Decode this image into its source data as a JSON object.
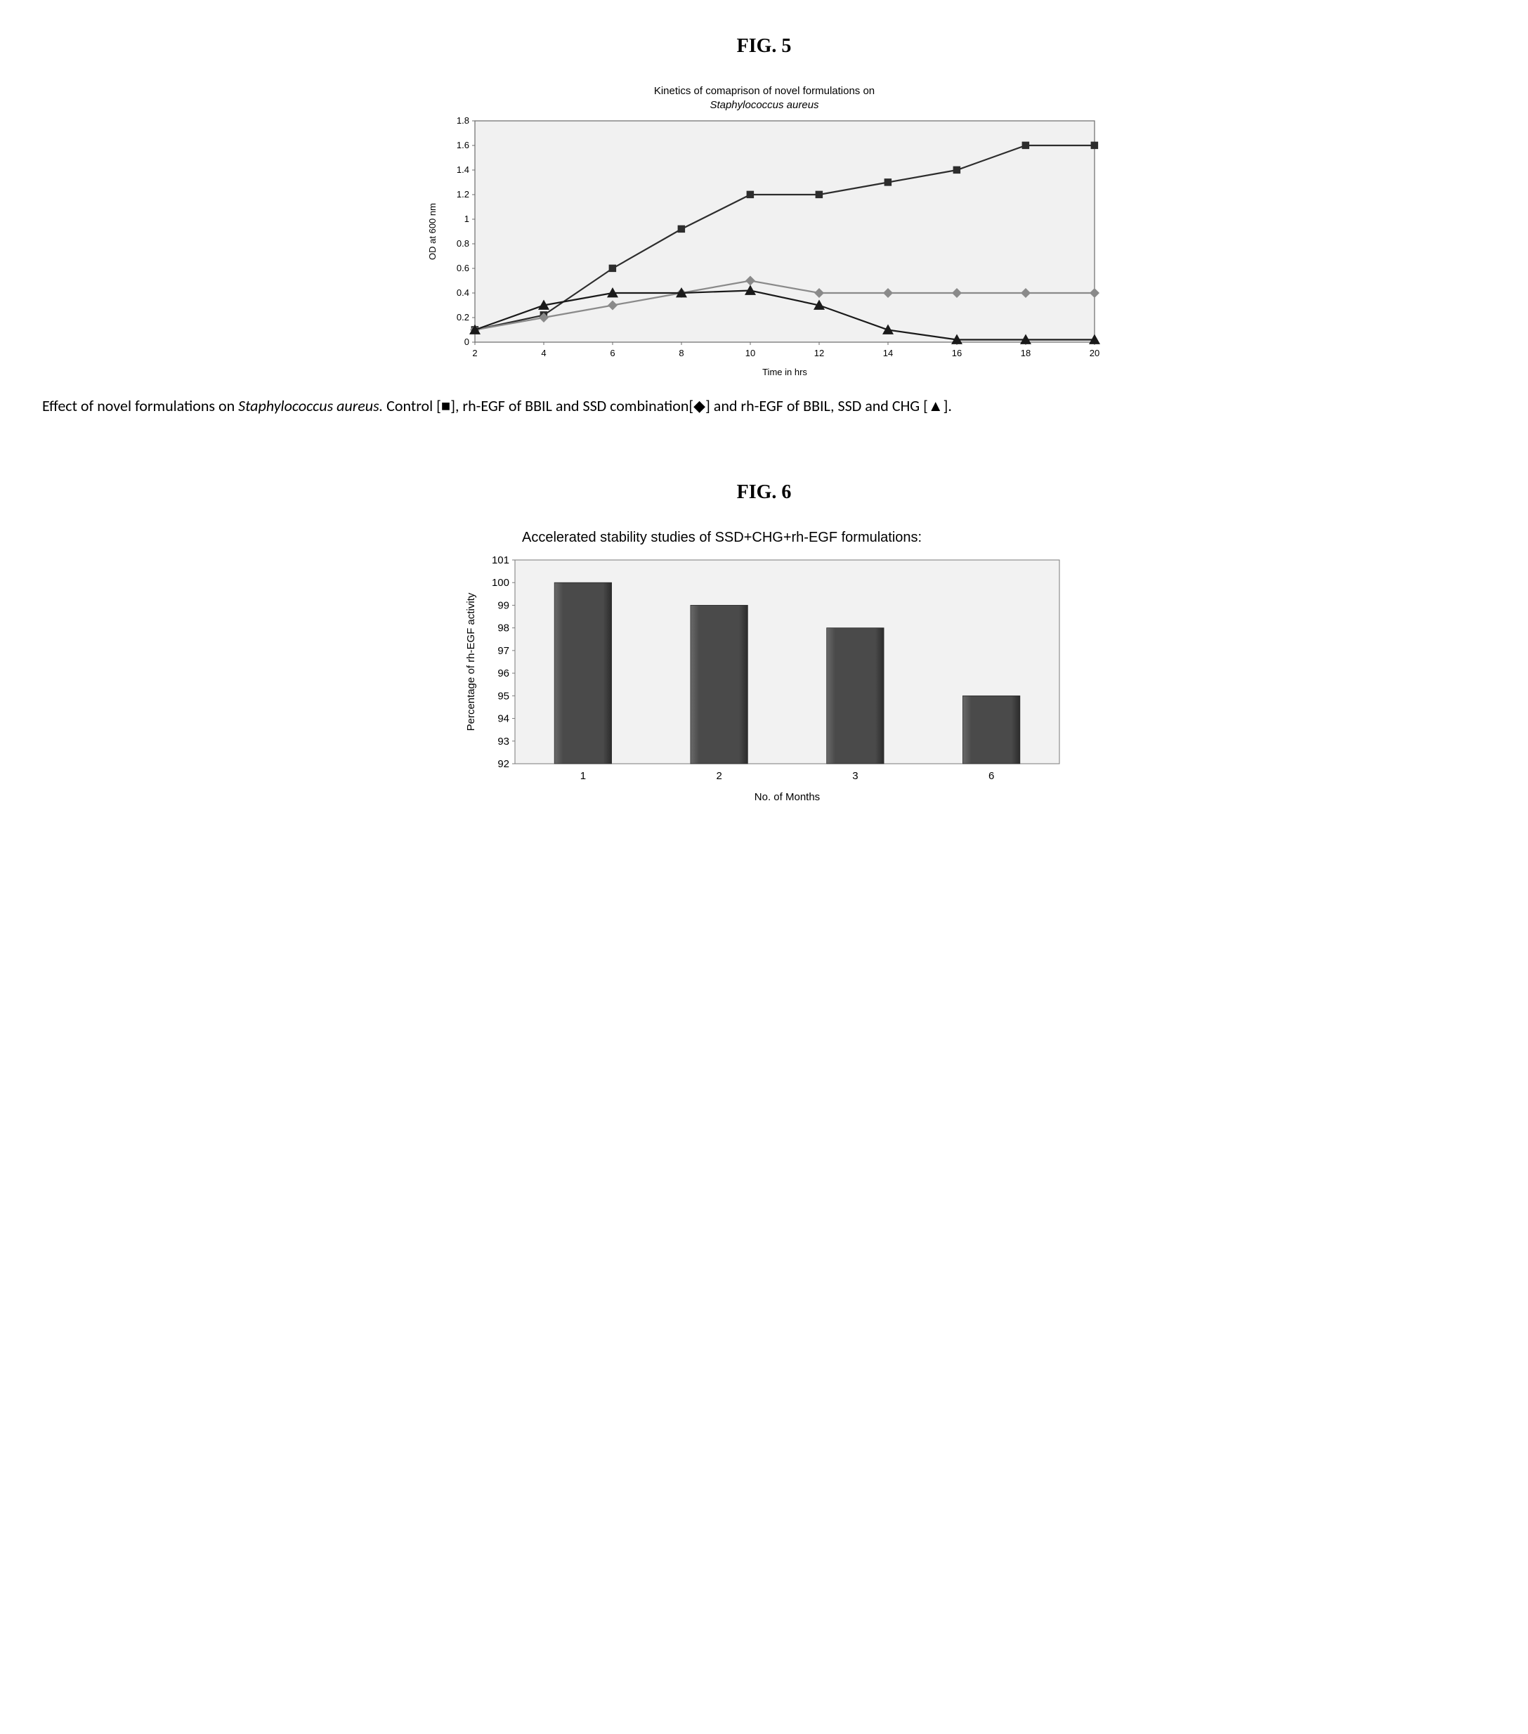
{
  "fig5": {
    "label": "FIG. 5",
    "chart": {
      "type": "line",
      "title_line1": "Kinetics of comaprison of novel formulations on",
      "title_line2": "Staphylococcus aureus",
      "title_fontsize": 15,
      "title_line2_italic": true,
      "xlabel": "Time in hrs",
      "ylabel": "OD at 600 nm",
      "axis_label_fontsize": 13,
      "tick_fontsize": 13,
      "xlim": [
        2,
        20
      ],
      "xtick_step": 2,
      "ylim": [
        0,
        1.8
      ],
      "ytick_step": 0.2,
      "ytick_format": "trim",
      "background_color": "#f1f1f1",
      "plot_border_color": "#6b6b6b",
      "grid": false,
      "line_width": 2.2,
      "series": [
        {
          "name": "Control",
          "marker": "square",
          "marker_size": 7,
          "color": "#2d2d2d",
          "x": [
            2,
            4,
            6,
            8,
            10,
            12,
            14,
            16,
            18,
            20
          ],
          "y": [
            0.1,
            0.22,
            0.6,
            0.92,
            1.2,
            1.2,
            1.3,
            1.4,
            1.6,
            1.6
          ]
        },
        {
          "name": "rh-EGF of BBIL and SSD",
          "marker": "diamond",
          "marker_size": 7,
          "color": "#8a8a8a",
          "x": [
            2,
            4,
            6,
            8,
            10,
            12,
            14,
            16,
            18,
            20
          ],
          "y": [
            0.1,
            0.2,
            0.3,
            0.4,
            0.5,
            0.4,
            0.4,
            0.4,
            0.4,
            0.4
          ]
        },
        {
          "name": "rh-EGF of BBIL, SSD and CHG",
          "marker": "triangle",
          "marker_size": 8,
          "color": "#1a1a1a",
          "x": [
            2,
            4,
            6,
            8,
            10,
            12,
            14,
            16,
            18,
            20
          ],
          "y": [
            0.1,
            0.3,
            0.4,
            0.4,
            0.42,
            0.3,
            0.1,
            0.02,
            0.02,
            0.02
          ]
        }
      ]
    },
    "caption_parts": {
      "p1": "Effect of novel formulations on ",
      "italic": "Staphylococcus aureus.",
      "p2": " Control [",
      "m1": "■",
      "p3": "], rh-EGF of BBIL and SSD combination[",
      "m2": "◆",
      "p4": "] and rh-EGF of BBIL, SSD and CHG [",
      "m3": "▲",
      "p5": "]."
    }
  },
  "fig6": {
    "label": "FIG.  6",
    "chart": {
      "type": "bar",
      "title": "Accelerated stability studies of SSD+CHG+rh-EGF formulations:",
      "title_fontsize": 20,
      "xlabel": "No. of Months",
      "ylabel": "Percentage of rh-EGF activity",
      "axis_label_fontsize": 15,
      "tick_fontsize": 15,
      "categories": [
        "1",
        "2",
        "3",
        "6"
      ],
      "values": [
        100,
        99,
        98,
        95
      ],
      "ylim": [
        92,
        101
      ],
      "ytick_step": 1,
      "background_color": "#f2f2f2",
      "plot_border_color": "#7a7a7a",
      "bar_color": "#4a4a4a",
      "bar_border_color": "#2b2b2b",
      "bar_inner_gradient_light": "#6a6a6a",
      "bar_width_ratio": 0.42
    }
  }
}
